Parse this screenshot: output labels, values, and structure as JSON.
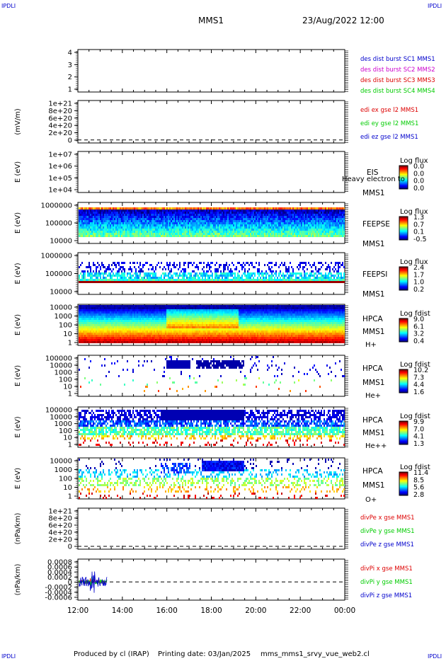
{
  "header": {
    "corner_left": "IPDLI",
    "corner_right": "IPDLI",
    "corner_bottom_left": "IPDLI",
    "corner_bottom_right": "IPDLI",
    "title": "MMS1",
    "datetime": "23/Aug/2022 12:00"
  },
  "footer": {
    "produced_by": "Produced by cl (IRAP)",
    "printing_date": "Printing date: 03/Jan/2025",
    "file": "mms_mms1_srvy_vue_web2.cl"
  },
  "colors": {
    "blue": "#0000cc",
    "magenta": "#cc00cc",
    "red": "#dd0000",
    "green": "#00cc00"
  },
  "time_axis": {
    "ticks": [
      "12:00",
      "14:00",
      "16:00",
      "18:00",
      "20:00",
      "22:00",
      "00:00"
    ]
  },
  "chart_data": [
    {
      "type": "line",
      "id": "p1",
      "ylabel": "",
      "yticks": [
        "4",
        "3",
        "2",
        "1"
      ],
      "ylim": [
        0.5,
        4.5
      ],
      "legend": [
        {
          "text": "des dist burst SC1 MMS1",
          "color": "#0000cc"
        },
        {
          "text": "des dist burst SC2 MMS2",
          "color": "#cc00cc"
        },
        {
          "text": "des dist burst SC3 MMS3",
          "color": "#dd0000"
        },
        {
          "text": "des dist burst SC4 MMS4",
          "color": "#00cc00"
        }
      ],
      "series": []
    },
    {
      "type": "line",
      "id": "p2",
      "ylabel": "(mV/m)",
      "yticks": [
        "1e+21",
        "8e+20",
        "6e+20",
        "4e+20",
        "2e+20",
        "0"
      ],
      "ylim": [
        0,
        1e+21
      ],
      "zero_line": true,
      "legend": [
        {
          "text": "edi ex gse l2 MMS1",
          "color": "#dd0000"
        },
        {
          "text": "edi ey gse l2 MMS1",
          "color": "#00cc00"
        },
        {
          "text": "edi ez gse l2 MMS1",
          "color": "#0000cc"
        }
      ],
      "series": []
    },
    {
      "type": "heatmap",
      "id": "p3",
      "ylabel": "E (eV)",
      "yticks": [
        "1e+07",
        "1e+06",
        "1e+05",
        "1e+04"
      ],
      "labels": [
        "EIS",
        "MMS1"
      ],
      "overlay_text": "Heavy electron to",
      "colorbar": {
        "title": "Log flux",
        "ticks": [
          "0.0",
          "0.0",
          "0.0",
          "0.0"
        ]
      },
      "data": "empty"
    },
    {
      "type": "heatmap",
      "id": "p4",
      "ylabel": "E (eV)",
      "yticks": [
        "1000000",
        "100000",
        "10000"
      ],
      "labels": [
        "FEEPSE",
        "MMS1"
      ],
      "colorbar": {
        "title": "Log flux",
        "ticks": [
          "1.3",
          "0.7",
          "0.1",
          "-0.5"
        ]
      },
      "time_range": [
        "12:00",
        "00:00"
      ]
    },
    {
      "type": "heatmap",
      "id": "p5",
      "ylabel": "E (eV)",
      "yticks": [
        "1000000",
        "100000",
        "10000"
      ],
      "labels": [
        "FEEPSI",
        "MMS1"
      ],
      "colorbar": {
        "title": "Log flux",
        "ticks": [
          "2.4",
          "1.7",
          "1.0",
          "0.2"
        ]
      },
      "time_range": [
        "12:00",
        "00:00"
      ]
    },
    {
      "type": "heatmap",
      "id": "p6",
      "ylabel": "E (eV)",
      "yticks": [
        "10000",
        "1000",
        "100",
        "10",
        "1"
      ],
      "labels": [
        "HPCA",
        "MMS1",
        "H+"
      ],
      "colorbar": {
        "title": "Log fdist",
        "ticks": [
          "9.0",
          "6.1",
          "3.2",
          "0.4"
        ]
      },
      "time_range": [
        "12:00",
        "00:00"
      ]
    },
    {
      "type": "heatmap",
      "id": "p7",
      "ylabel": "E (eV)",
      "yticks": [
        "100000",
        "10000",
        "1000",
        "100",
        "10",
        "1"
      ],
      "labels": [
        "HPCA",
        "MMS1",
        "He+"
      ],
      "colorbar": {
        "title": "Log fdist",
        "ticks": [
          "10.2",
          "7.3",
          "4.4",
          "1.6"
        ]
      },
      "time_range": [
        "12:00",
        "00:00"
      ]
    },
    {
      "type": "heatmap",
      "id": "p8",
      "ylabel": "E (eV)",
      "yticks": [
        "100000",
        "10000",
        "1000",
        "100",
        "10",
        "1"
      ],
      "labels": [
        "HPCA",
        "MMS1",
        "He++"
      ],
      "colorbar": {
        "title": "Log fdist",
        "ticks": [
          "9.9",
          "7.0",
          "4.1",
          "1.3"
        ]
      },
      "time_range": [
        "12:00",
        "00:00"
      ]
    },
    {
      "type": "heatmap",
      "id": "p9",
      "ylabel": "E (eV)",
      "yticks": [
        "10000",
        "1000",
        "100",
        "10",
        "1"
      ],
      "labels": [
        "HPCA",
        "MMS1",
        "O+"
      ],
      "colorbar": {
        "title": "Log fdist",
        "ticks": [
          "11.4",
          "8.5",
          "5.6",
          "2.8"
        ]
      },
      "time_range": [
        "12:00",
        "00:00"
      ]
    },
    {
      "type": "line",
      "id": "p10",
      "ylabel": "(nPa/km)",
      "yticks": [
        "1e+21",
        "8e+20",
        "6e+20",
        "4e+20",
        "2e+20",
        "0"
      ],
      "ylim": [
        0,
        1e+21
      ],
      "zero_line": true,
      "legend": [
        {
          "text": "divPe x gse MMS1",
          "color": "#dd0000"
        },
        {
          "text": "divPe y gse MMS1",
          "color": "#00cc00"
        },
        {
          "text": "divPe z gse MMS1",
          "color": "#0000cc"
        }
      ],
      "series": []
    },
    {
      "type": "line",
      "id": "p11",
      "ylabel": "(nPa/km)",
      "yticks": [
        "0.0008",
        "0.0006",
        "0.0004",
        "0.0002",
        "0",
        "-0.0002",
        "-0.0004",
        "-0.0006"
      ],
      "ylim": [
        -0.0007,
        0.0009
      ],
      "zero_line": true,
      "legend": [
        {
          "text": "divPi x gse MMS1",
          "color": "#dd0000"
        },
        {
          "text": "divPi y gse MMS1",
          "color": "#00cc00"
        },
        {
          "text": "divPi z gse MMS1",
          "color": "#0000cc"
        }
      ],
      "time_range": [
        "12:00",
        "13:20"
      ]
    }
  ]
}
